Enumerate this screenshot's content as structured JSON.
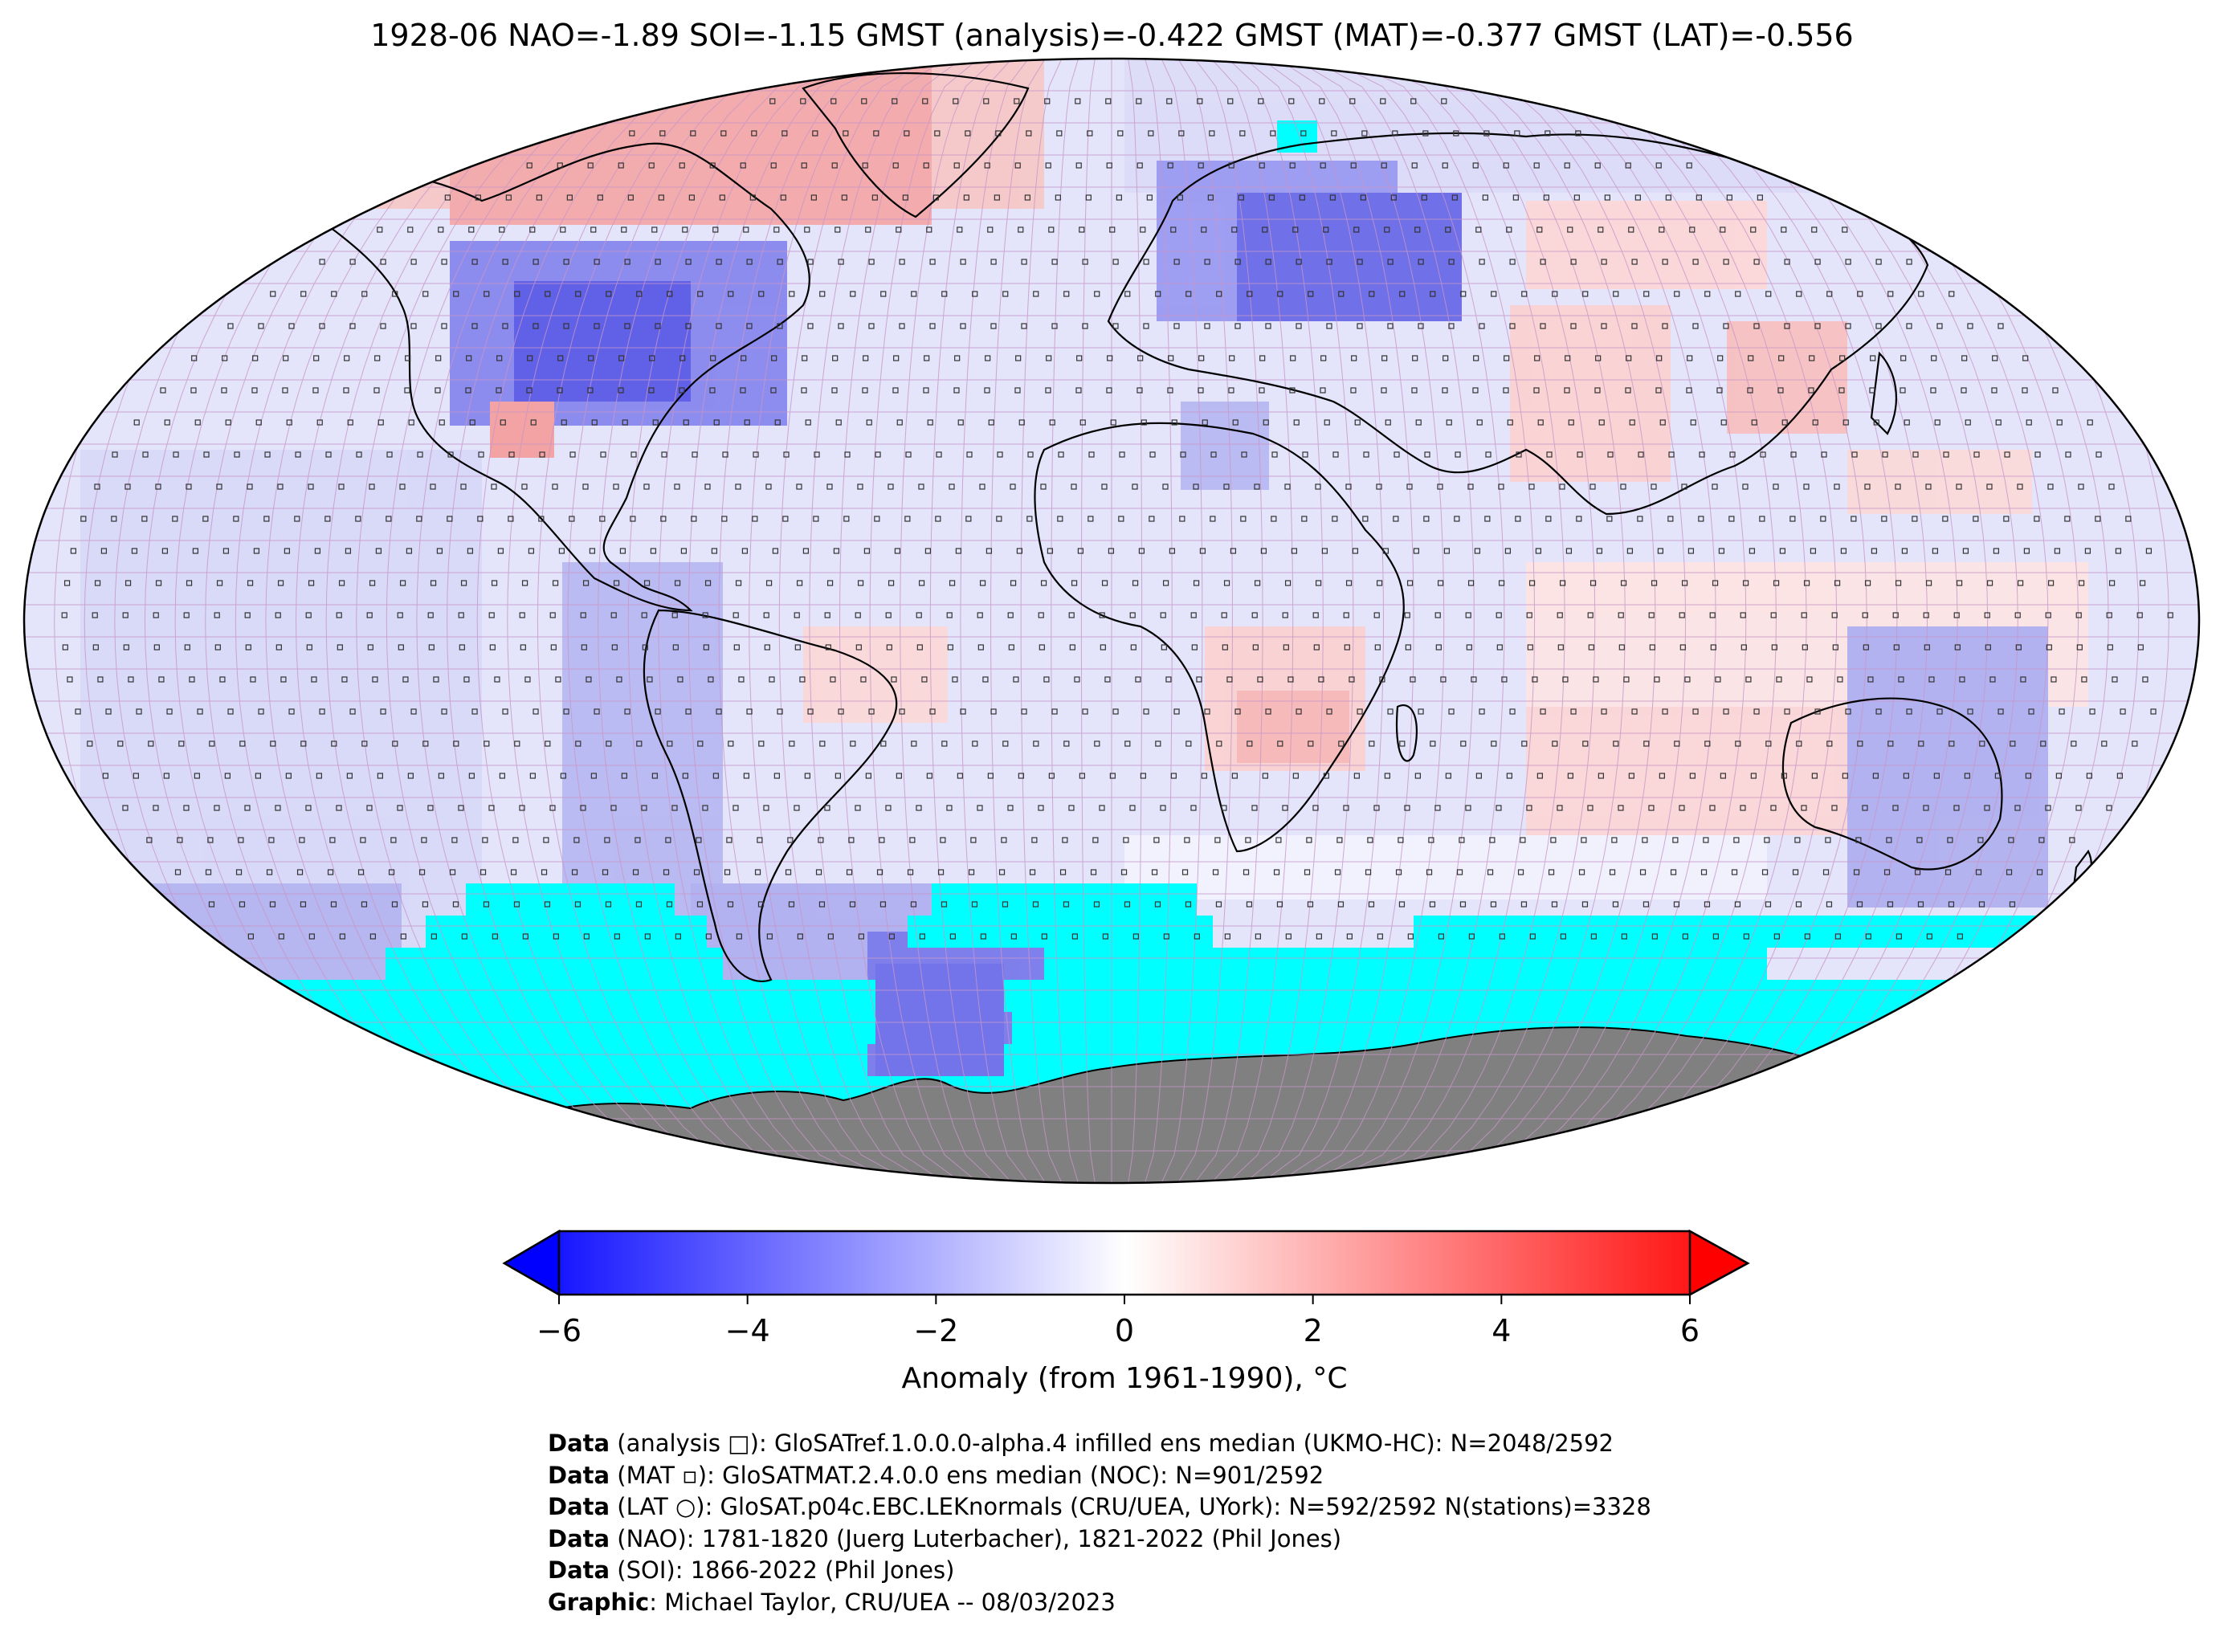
{
  "title": "1928-06 NAO=-1.89 SOI=-1.15 GMST (analysis)=-0.422 GMST (MAT)=-0.377 GMST (LAT)=-0.556",
  "colorbar": {
    "ticks": [
      "−6",
      "−4",
      "−2",
      "0",
      "2",
      "4",
      "6"
    ],
    "tick_values": [
      -6,
      -4,
      -2,
      0,
      2,
      4,
      6
    ],
    "range": [
      -6,
      6
    ],
    "label": "Anomaly (from 1961-1990), °C",
    "colors": {
      "low": "#0000ff",
      "mid": "#ffffff",
      "high": "#ff0000"
    }
  },
  "map": {
    "projection": "robinson",
    "colors": {
      "sea_ice": "#00ffff",
      "antarctica": "#808080",
      "grid_lines": "#c080c0",
      "coastlines": "#000000"
    }
  },
  "credits": [
    {
      "bold": "Data",
      "text": " (analysis □): GloSATref.1.0.0.0-alpha.4 infilled ens median (UKMO-HC): N=2048/2592"
    },
    {
      "bold": "Data",
      "text": " (MAT ▫): GloSATMAT.2.4.0.0 ens median (NOC): N=901/2592"
    },
    {
      "bold": "Data",
      "text": " (LAT ○): GloSAT.p04c.EBC.LEKnormals (CRU/UEA, UYork): N=592/2592 N(stations)=3328"
    },
    {
      "bold": "Data",
      "text": " (NAO): 1781-1820 (Juerg Luterbacher), 1821-2022 (Phil Jones)"
    },
    {
      "bold": "Data",
      "text": " (SOI): 1866-2022 (Phil Jones)"
    },
    {
      "bold": "Graphic",
      "text": ": Michael Taylor, CRU/UEA -- 08/03/2023"
    }
  ]
}
